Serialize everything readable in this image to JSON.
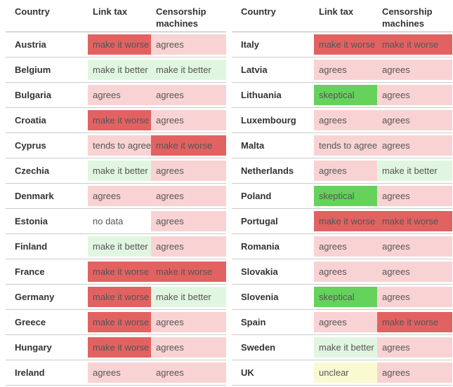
{
  "chart_data": {
    "type": "table",
    "columns": [
      "Country",
      "Link tax",
      "Censorship machines"
    ],
    "palette": {
      "make it worse": "#e26262",
      "make it better": "#e1f6e1",
      "agrees": "#f9d3d3",
      "tends to agree": "#f9d3d3",
      "skeptical": "#65d25c",
      "unclear": "#fafad2",
      "no data": "#ffffff"
    },
    "text_colors": {
      "header": "#333333",
      "country": "#333333",
      "value": "#555555"
    },
    "tables": [
      {
        "rows": [
          [
            "Austria",
            "make it worse",
            "agrees"
          ],
          [
            "Belgium",
            "make it better",
            "make it better"
          ],
          [
            "Bulgaria",
            "agrees",
            "agrees"
          ],
          [
            "Croatia",
            "make it worse",
            "agrees"
          ],
          [
            "Cyprus",
            "tends to agree",
            "make it worse"
          ],
          [
            "Czechia",
            "make it better",
            "agrees"
          ],
          [
            "Denmark",
            "agrees",
            "agrees"
          ],
          [
            "Estonia",
            "no data",
            "agrees"
          ],
          [
            "Finland",
            "make it better",
            "agrees"
          ],
          [
            "France",
            "make it worse",
            "make it worse"
          ],
          [
            "Germany",
            "make it worse",
            "make it better"
          ],
          [
            "Greece",
            "make it worse",
            "agrees"
          ],
          [
            "Hungary",
            "make it worse",
            "agrees"
          ],
          [
            "Ireland",
            "agrees",
            "agrees"
          ]
        ]
      },
      {
        "rows": [
          [
            "Italy",
            "make it worse",
            "make it worse"
          ],
          [
            "Latvia",
            "agrees",
            "agrees"
          ],
          [
            "Lithuania",
            "skeptical",
            "agrees"
          ],
          [
            "Luxembourg",
            "agrees",
            "agrees"
          ],
          [
            "Malta",
            "tends to agree",
            "agrees"
          ],
          [
            "Netherlands",
            "agrees",
            "make it better"
          ],
          [
            "Poland",
            "skeptical",
            "agrees"
          ],
          [
            "Portugal",
            "make it worse",
            "make it worse"
          ],
          [
            "Romania",
            "agrees",
            "agrees"
          ],
          [
            "Slovakia",
            "agrees",
            "agrees"
          ],
          [
            "Slovenia",
            "skeptical",
            "agrees"
          ],
          [
            "Spain",
            "agrees",
            "make it worse"
          ],
          [
            "Sweden",
            "make it better",
            "agrees"
          ],
          [
            "UK",
            "unclear",
            "agrees"
          ]
        ]
      }
    ]
  }
}
